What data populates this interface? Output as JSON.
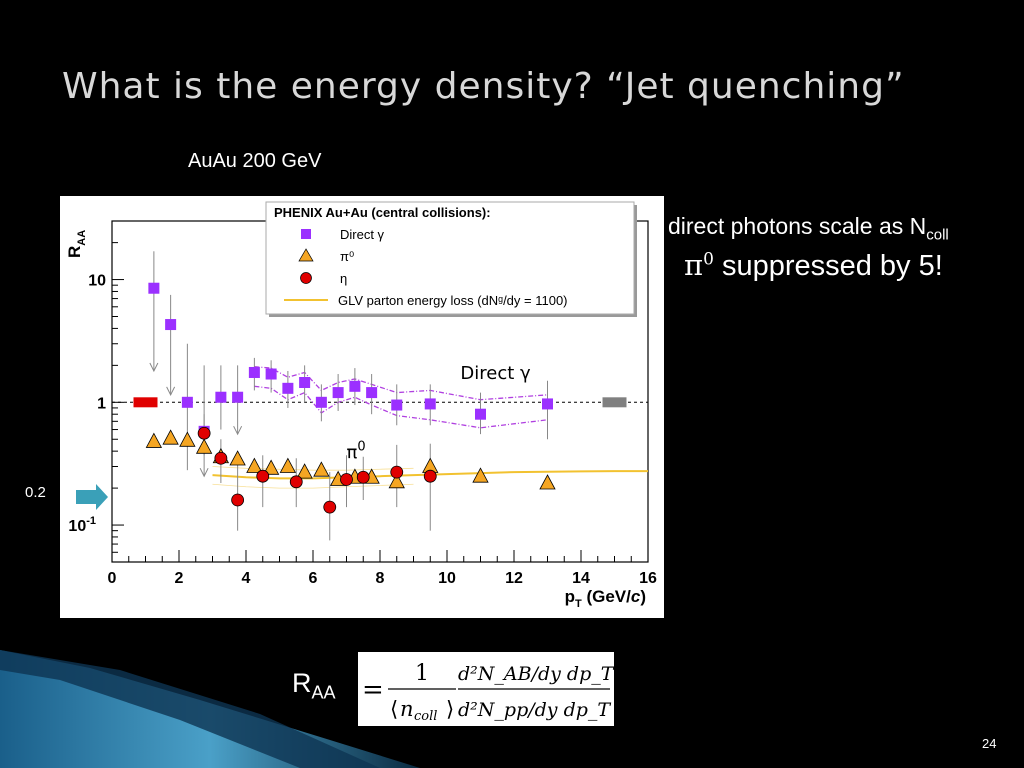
{
  "slide": {
    "title": "What is the energy density?   “Jet quenching”",
    "subtitle": "AuAu 200 GeV",
    "note_line1_text": "direct photons scale as N",
    "note_line1_sub": "coll",
    "note_line2_pi": "π",
    "note_line2_sup": "0",
    "note_line2_text": " suppressed  by 5!",
    "ref_label": "0.2",
    "raa_main": "R",
    "raa_sub": "AA",
    "formula": {
      "equals": "=",
      "num_left": "1",
      "den_left_n": "n",
      "den_left_sub": "coll",
      "num_right": "d²N_AB/dy dp_T",
      "den_right": "d²N_pp/dy dp_T"
    },
    "page_number": "24",
    "colors": {
      "background": "#000000",
      "accent_arrow": "#3aa0b8",
      "swoosh": "#3d8fb8"
    }
  },
  "chart_data": {
    "type": "scatter",
    "ylabel": "R_AA",
    "xlabel": "p_T (GeV/c)",
    "xlim": [
      0,
      16
    ],
    "ylim": [
      0.05,
      30
    ],
    "yscale": "log",
    "xticks": [
      0,
      2,
      4,
      6,
      8,
      10,
      12,
      14,
      16
    ],
    "yticks": [
      {
        "value": 0.1,
        "label": "10",
        "exp": "-1"
      },
      {
        "value": 1,
        "label": "1",
        "exp": ""
      },
      {
        "value": 10,
        "label": "10",
        "exp": ""
      }
    ],
    "reference_line": 1,
    "legend": {
      "title": "PHENIX Au+Au (central collisions):",
      "position": "top-right",
      "entries": [
        {
          "label": "Direct γ",
          "symbol": "square",
          "color": "#9b30ff"
        },
        {
          "label": "π⁰",
          "symbol": "triangle",
          "color": "#f5a623"
        },
        {
          "label": "η",
          "symbol": "circle",
          "color": "#e00000"
        },
        {
          "label": "GLV parton energy loss (dNᵍ/dy = 1100)",
          "symbol": "line",
          "color": "#f2c230"
        }
      ]
    },
    "annotations": [
      {
        "text": "Direct γ",
        "x": 10.4,
        "y": 1.55
      },
      {
        "text": "π",
        "sup": "0",
        "x": 7.0,
        "y": 0.35
      }
    ],
    "series": [
      {
        "name": "Direct γ",
        "marker": "square",
        "color": "#9b30ff",
        "points": [
          {
            "x": 1.25,
            "y": 8.5,
            "err_hi": 17,
            "err_lo": 1.8,
            "arrow": true
          },
          {
            "x": 1.75,
            "y": 4.3,
            "err_hi": 7.5,
            "err_lo": 1.15,
            "arrow": true
          },
          {
            "x": 2.25,
            "y": 1.0,
            "err_hi": 3.0,
            "err_lo": 0.28,
            "arrow": false
          },
          {
            "x": 2.75,
            "y": 0.58,
            "err_hi": 2.0,
            "err_lo": 0.25,
            "arrow": true
          },
          {
            "x": 3.25,
            "y": 1.1,
            "err_hi": 2.0,
            "err_lo": 0.6,
            "arrow": false
          },
          {
            "x": 3.75,
            "y": 1.1,
            "err_hi": 2.0,
            "err_lo": 0.55,
            "arrow": true
          },
          {
            "x": 4.25,
            "y": 1.75,
            "err_hi": 2.3,
            "err_lo": 1.25,
            "arrow": false
          },
          {
            "x": 4.75,
            "y": 1.7,
            "err_hi": 2.2,
            "err_lo": 1.2,
            "arrow": false
          },
          {
            "x": 5.25,
            "y": 1.3,
            "err_hi": 1.8,
            "err_lo": 0.9,
            "arrow": false
          },
          {
            "x": 5.75,
            "y": 1.45,
            "err_hi": 2.0,
            "err_lo": 1.0,
            "arrow": false
          },
          {
            "x": 6.25,
            "y": 1.0,
            "err_hi": 1.4,
            "err_lo": 0.7,
            "arrow": false
          },
          {
            "x": 6.75,
            "y": 1.2,
            "err_hi": 1.7,
            "err_lo": 0.85,
            "arrow": false
          },
          {
            "x": 7.25,
            "y": 1.35,
            "err_hi": 1.9,
            "err_lo": 0.95,
            "arrow": false
          },
          {
            "x": 7.75,
            "y": 1.2,
            "err_hi": 1.7,
            "err_lo": 0.8,
            "arrow": false
          },
          {
            "x": 8.5,
            "y": 0.95,
            "err_hi": 1.4,
            "err_lo": 0.65,
            "arrow": false
          },
          {
            "x": 9.5,
            "y": 0.97,
            "err_hi": 1.4,
            "err_lo": 0.65,
            "arrow": false
          },
          {
            "x": 11.0,
            "y": 0.8,
            "err_hi": 1.2,
            "err_lo": 0.55,
            "arrow": false
          },
          {
            "x": 13.0,
            "y": 0.97,
            "err_hi": 1.5,
            "err_lo": 0.5,
            "arrow": false
          }
        ]
      },
      {
        "name": "π⁰",
        "marker": "triangle",
        "color": "#f5a623",
        "points": [
          {
            "x": 1.25,
            "y": 0.48
          },
          {
            "x": 1.75,
            "y": 0.51
          },
          {
            "x": 2.25,
            "y": 0.49
          },
          {
            "x": 2.75,
            "y": 0.43
          },
          {
            "x": 3.25,
            "y": 0.36
          },
          {
            "x": 3.75,
            "y": 0.345
          },
          {
            "x": 4.25,
            "y": 0.3
          },
          {
            "x": 4.75,
            "y": 0.29
          },
          {
            "x": 5.25,
            "y": 0.3
          },
          {
            "x": 5.75,
            "y": 0.27
          },
          {
            "x": 6.25,
            "y": 0.28
          },
          {
            "x": 6.75,
            "y": 0.235
          },
          {
            "x": 7.25,
            "y": 0.245
          },
          {
            "x": 7.75,
            "y": 0.245
          },
          {
            "x": 8.5,
            "y": 0.225
          },
          {
            "x": 9.5,
            "y": 0.3
          },
          {
            "x": 11.0,
            "y": 0.25
          },
          {
            "x": 13.0,
            "y": 0.22
          }
        ]
      },
      {
        "name": "η",
        "marker": "circle",
        "color": "#e00000",
        "points": [
          {
            "x": 2.75,
            "y": 0.56,
            "err_hi": 0.8,
            "err_lo": 0.37
          },
          {
            "x": 3.25,
            "y": 0.35,
            "err_hi": 0.5,
            "err_lo": 0.22
          },
          {
            "x": 3.75,
            "y": 0.16,
            "err_hi": 0.34,
            "err_lo": 0.09
          },
          {
            "x": 4.5,
            "y": 0.25,
            "err_hi": 0.37,
            "err_lo": 0.14
          },
          {
            "x": 5.5,
            "y": 0.225,
            "err_hi": 0.35,
            "err_lo": 0.14
          },
          {
            "x": 6.5,
            "y": 0.14,
            "err_hi": 0.27,
            "err_lo": 0.075
          },
          {
            "x": 7.0,
            "y": 0.235,
            "err_hi": 0.37,
            "err_lo": 0.14
          },
          {
            "x": 7.5,
            "y": 0.245,
            "err_hi": 0.36,
            "err_lo": 0.16
          },
          {
            "x": 8.5,
            "y": 0.27,
            "err_hi": 0.45,
            "err_lo": 0.14
          },
          {
            "x": 9.5,
            "y": 0.25,
            "err_hi": 0.46,
            "err_lo": 0.09
          }
        ]
      }
    ],
    "theory_curve": {
      "name": "GLV parton energy loss (dNᵍ/dy = 1100)",
      "color": "#f2c230",
      "x": [
        3,
        4,
        5,
        6,
        7,
        8,
        9,
        10,
        11,
        12,
        13,
        14,
        15,
        16
      ],
      "y": [
        0.255,
        0.245,
        0.24,
        0.24,
        0.245,
        0.25,
        0.255,
        0.26,
        0.265,
        0.27,
        0.272,
        0.274,
        0.275,
        0.275
      ],
      "band_hi": [
        0.3,
        0.29,
        0.285,
        0.28,
        0.28,
        0.285,
        0.29
      ],
      "band_lo": [
        0.215,
        0.205,
        0.2,
        0.2,
        0.205,
        0.21,
        0.215
      ]
    },
    "systematic_boxes": [
      {
        "x": 1.0,
        "y": 1.0,
        "color": "#e00000"
      },
      {
        "x": 15.0,
        "y": 1.0,
        "color": "#808080"
      }
    ],
    "direct_gamma_band": {
      "x": [
        4.25,
        4.75,
        5.25,
        5.75,
        6.25,
        6.75,
        7.25,
        7.75,
        8.5,
        9.5,
        11.0,
        13.0
      ],
      "hi": [
        1.95,
        1.9,
        1.6,
        1.75,
        1.25,
        1.45,
        1.55,
        1.4,
        1.2,
        1.25,
        1.05,
        1.15
      ],
      "lo": [
        1.35,
        1.3,
        1.05,
        1.2,
        0.82,
        1.0,
        1.1,
        0.95,
        0.78,
        0.72,
        0.62,
        0.72
      ]
    }
  }
}
